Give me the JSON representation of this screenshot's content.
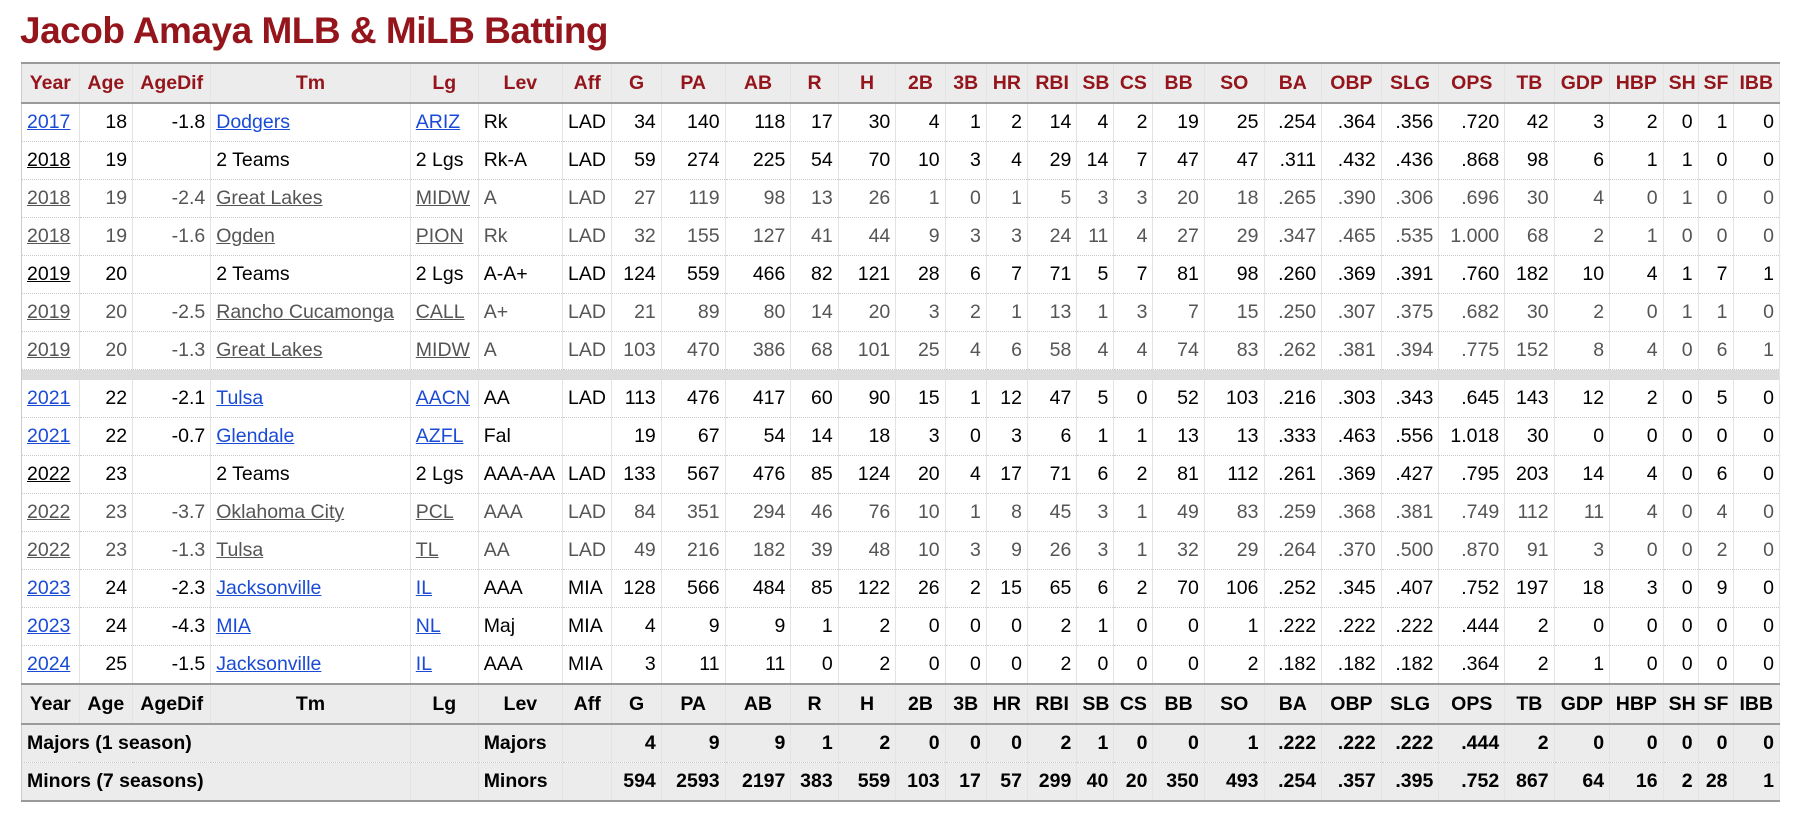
{
  "page": {
    "title": "Jacob Amaya MLB & MiLB Batting"
  },
  "columns": [
    "Year",
    "Age",
    "AgeDif",
    "Tm",
    "Lg",
    "Lev",
    "Aff",
    "G",
    "PA",
    "AB",
    "R",
    "H",
    "2B",
    "3B",
    "HR",
    "RBI",
    "SB",
    "CS",
    "BB",
    "SO",
    "BA",
    "OBP",
    "SLG",
    "OPS",
    "TB",
    "GDP",
    "HBP",
    "SH",
    "SF",
    "IBB"
  ],
  "rows": [
    {
      "kind": "major",
      "cells": [
        "2017",
        "18",
        "-1.8",
        "Dodgers",
        "ARIZ",
        "Rk",
        "LAD",
        "34",
        "140",
        "118",
        "17",
        "30",
        "4",
        "1",
        "2",
        "14",
        "4",
        "2",
        "19",
        "25",
        ".254",
        ".364",
        ".356",
        ".720",
        "42",
        "3",
        "2",
        "0",
        "1",
        "0"
      ],
      "links": [
        0,
        3,
        4
      ]
    },
    {
      "kind": "plain",
      "cells": [
        "2018",
        "19",
        "",
        "2 Teams",
        "2 Lgs",
        "Rk-A",
        "LAD",
        "59",
        "274",
        "225",
        "54",
        "70",
        "10",
        "3",
        "4",
        "29",
        "14",
        "7",
        "47",
        "47",
        ".311",
        ".432",
        ".436",
        ".868",
        "98",
        "6",
        "1",
        "1",
        "0",
        "0"
      ],
      "links": [
        0
      ]
    },
    {
      "kind": "minor",
      "cells": [
        "2018",
        "19",
        "-2.4",
        "Great Lakes",
        "MIDW",
        "A",
        "LAD",
        "27",
        "119",
        "98",
        "13",
        "26",
        "1",
        "0",
        "1",
        "5",
        "3",
        "3",
        "20",
        "18",
        ".265",
        ".390",
        ".306",
        ".696",
        "30",
        "4",
        "0",
        "1",
        "0",
        "0"
      ],
      "links": [
        0,
        3,
        4
      ]
    },
    {
      "kind": "minor",
      "cells": [
        "2018",
        "19",
        "-1.6",
        "Ogden",
        "PION",
        "Rk",
        "LAD",
        "32",
        "155",
        "127",
        "41",
        "44",
        "9",
        "3",
        "3",
        "24",
        "11",
        "4",
        "27",
        "29",
        ".347",
        ".465",
        ".535",
        "1.000",
        "68",
        "2",
        "1",
        "0",
        "0",
        "0"
      ],
      "links": [
        0,
        3,
        4
      ]
    },
    {
      "kind": "plain",
      "cells": [
        "2019",
        "20",
        "",
        "2 Teams",
        "2 Lgs",
        "A-A+",
        "LAD",
        "124",
        "559",
        "466",
        "82",
        "121",
        "28",
        "6",
        "7",
        "71",
        "5",
        "7",
        "81",
        "98",
        ".260",
        ".369",
        ".391",
        ".760",
        "182",
        "10",
        "4",
        "1",
        "7",
        "1"
      ],
      "links": [
        0
      ]
    },
    {
      "kind": "minor",
      "cells": [
        "2019",
        "20",
        "-2.5",
        "Rancho Cucamonga",
        "CALL",
        "A+",
        "LAD",
        "21",
        "89",
        "80",
        "14",
        "20",
        "3",
        "2",
        "1",
        "13",
        "1",
        "3",
        "7",
        "15",
        ".250",
        ".307",
        ".375",
        ".682",
        "30",
        "2",
        "0",
        "1",
        "1",
        "0"
      ],
      "links": [
        0,
        3,
        4
      ]
    },
    {
      "kind": "minor",
      "cells": [
        "2019",
        "20",
        "-1.3",
        "Great Lakes",
        "MIDW",
        "A",
        "LAD",
        "103",
        "470",
        "386",
        "68",
        "101",
        "25",
        "4",
        "6",
        "58",
        "4",
        "4",
        "74",
        "83",
        ".262",
        ".381",
        ".394",
        ".775",
        "152",
        "8",
        "4",
        "0",
        "6",
        "1"
      ],
      "links": [
        0,
        3,
        4
      ]
    },
    {
      "kind": "spacer"
    },
    {
      "kind": "major",
      "cells": [
        "2021",
        "22",
        "-2.1",
        "Tulsa",
        "AACN",
        "AA",
        "LAD",
        "113",
        "476",
        "417",
        "60",
        "90",
        "15",
        "1",
        "12",
        "47",
        "5",
        "0",
        "52",
        "103",
        ".216",
        ".303",
        ".343",
        ".645",
        "143",
        "12",
        "2",
        "0",
        "5",
        "0"
      ],
      "links": [
        0,
        3,
        4
      ]
    },
    {
      "kind": "major",
      "cells": [
        "2021",
        "22",
        "-0.7",
        "Glendale",
        "AZFL",
        "Fal",
        "",
        "19",
        "67",
        "54",
        "14",
        "18",
        "3",
        "0",
        "3",
        "6",
        "1",
        "1",
        "13",
        "13",
        ".333",
        ".463",
        ".556",
        "1.018",
        "30",
        "0",
        "0",
        "0",
        "0",
        "0"
      ],
      "links": [
        0,
        3,
        4
      ]
    },
    {
      "kind": "plain",
      "cells": [
        "2022",
        "23",
        "",
        "2 Teams",
        "2 Lgs",
        "AAA-AA",
        "LAD",
        "133",
        "567",
        "476",
        "85",
        "124",
        "20",
        "4",
        "17",
        "71",
        "6",
        "2",
        "81",
        "112",
        ".261",
        ".369",
        ".427",
        ".795",
        "203",
        "14",
        "4",
        "0",
        "6",
        "0"
      ],
      "links": [
        0
      ]
    },
    {
      "kind": "minor",
      "cells": [
        "2022",
        "23",
        "-3.7",
        "Oklahoma City",
        "PCL",
        "AAA",
        "LAD",
        "84",
        "351",
        "294",
        "46",
        "76",
        "10",
        "1",
        "8",
        "45",
        "3",
        "1",
        "49",
        "83",
        ".259",
        ".368",
        ".381",
        ".749",
        "112",
        "11",
        "4",
        "0",
        "4",
        "0"
      ],
      "links": [
        0,
        3,
        4
      ]
    },
    {
      "kind": "minor",
      "cells": [
        "2022",
        "23",
        "-1.3",
        "Tulsa",
        "TL",
        "AA",
        "LAD",
        "49",
        "216",
        "182",
        "39",
        "48",
        "10",
        "3",
        "9",
        "26",
        "3",
        "1",
        "32",
        "29",
        ".264",
        ".370",
        ".500",
        ".870",
        "91",
        "3",
        "0",
        "0",
        "2",
        "0"
      ],
      "links": [
        0,
        3,
        4
      ]
    },
    {
      "kind": "major",
      "cells": [
        "2023",
        "24",
        "-2.3",
        "Jacksonville",
        "IL",
        "AAA",
        "MIA",
        "128",
        "566",
        "484",
        "85",
        "122",
        "26",
        "2",
        "15",
        "65",
        "6",
        "2",
        "70",
        "106",
        ".252",
        ".345",
        ".407",
        ".752",
        "197",
        "18",
        "3",
        "0",
        "9",
        "0"
      ],
      "links": [
        0,
        3,
        4
      ]
    },
    {
      "kind": "major",
      "cells": [
        "2023",
        "24",
        "-4.3",
        "MIA",
        "NL",
        "Maj",
        "MIA",
        "4",
        "9",
        "9",
        "1",
        "2",
        "0",
        "0",
        "0",
        "2",
        "1",
        "0",
        "0",
        "1",
        ".222",
        ".222",
        ".222",
        ".444",
        "2",
        "0",
        "0",
        "0",
        "0",
        "0"
      ],
      "links": [
        0,
        3,
        4
      ]
    },
    {
      "kind": "major",
      "cells": [
        "2024",
        "25",
        "-1.5",
        "Jacksonville",
        "IL",
        "AAA",
        "MIA",
        "3",
        "11",
        "11",
        "0",
        "2",
        "0",
        "0",
        "0",
        "2",
        "0",
        "0",
        "0",
        "2",
        ".182",
        ".182",
        ".182",
        ".364",
        "2",
        "1",
        "0",
        "0",
        "0",
        "0"
      ],
      "links": [
        0,
        3,
        4
      ]
    }
  ],
  "totals": [
    {
      "label": "Majors (1 season)",
      "lev": "Majors",
      "stats": [
        "4",
        "9",
        "9",
        "1",
        "2",
        "0",
        "0",
        "0",
        "2",
        "1",
        "0",
        "0",
        "1",
        ".222",
        ".222",
        ".222",
        ".444",
        "2",
        "0",
        "0",
        "0",
        "0",
        "0"
      ]
    },
    {
      "label": "Minors (7 seasons)",
      "lev": "Minors",
      "stats": [
        "594",
        "2593",
        "2197",
        "383",
        "559",
        "103",
        "17",
        "57",
        "299",
        "40",
        "20",
        "350",
        "493",
        ".254",
        ".357",
        ".395",
        ".752",
        "867",
        "64",
        "16",
        "2",
        "28",
        "1"
      ]
    }
  ],
  "colors": {
    "title": "#94151b",
    "header_text": "#94151b",
    "link_major": "#1a4bd6",
    "link_minor": "#555555",
    "header_bg": "#ececec"
  }
}
